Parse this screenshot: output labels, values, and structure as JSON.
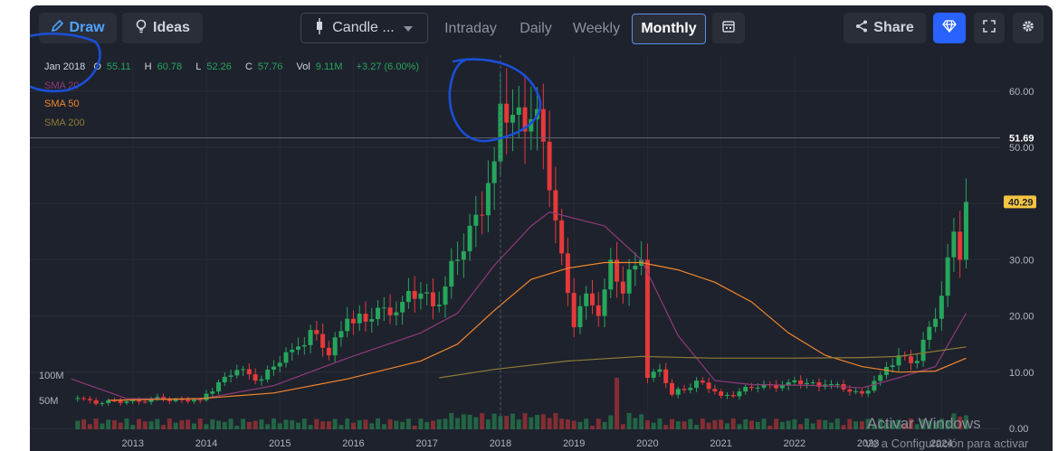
{
  "toolbar": {
    "draw_label": "Draw",
    "ideas_label": "Ideas",
    "chart_type_label": "Candle ...",
    "tabs": [
      "Intraday",
      "Daily",
      "Weekly",
      "Monthly"
    ],
    "active_tab": "Monthly",
    "share_label": "Share"
  },
  "ohlc": {
    "period": "Jan 2018",
    "o_key": "O",
    "o": "55.11",
    "h_key": "H",
    "h": "60.78",
    "l_key": "L",
    "l": "52.26",
    "c_key": "C",
    "c": "57.76",
    "vol_key": "Vol",
    "vol": "9.11M",
    "change": "+3.27 (6.00%)"
  },
  "indicators": {
    "sma20": "SMA 20",
    "sma50": "SMA 50",
    "sma200": "SMA 200"
  },
  "watermark": {
    "line1": "Activar Windows",
    "line2": "Ve a Configuración para activar"
  },
  "colors": {
    "up": "#26a65b",
    "down": "#e5393a",
    "sma20": "#8e3a78",
    "sma50": "#f2862c",
    "sma200": "#8e7a35",
    "accent": "#2962ff",
    "last_price_tag": "#f5c542",
    "annotation": "#1a4fd6"
  },
  "chart_data": {
    "type": "candlestick",
    "title": "",
    "interval": "monthly",
    "x_ticks": [
      "2013",
      "2014",
      "2015",
      "2016",
      "2017",
      "2018",
      "2019",
      "2020",
      "2021",
      "2022",
      "2023",
      "2024"
    ],
    "y_ticks": [
      "0.00",
      "10.00",
      "20.00",
      "30.00",
      "40.00",
      "50.00",
      "60.00"
    ],
    "volume_ticks": [
      "50M",
      "100M"
    ],
    "ylim": [
      0,
      62
    ],
    "reference_line": {
      "value": 51.69,
      "label": "51.69"
    },
    "last_price": {
      "value": 40.29,
      "label": "40.29"
    },
    "ohlc_anchors": [
      [
        "2012-04",
        5.4
      ],
      [
        "2012-08",
        4.5
      ],
      [
        "2012-12",
        4.8
      ],
      [
        "2013-06",
        5.2
      ],
      [
        "2013-12",
        5.0
      ],
      [
        "2014-03",
        8.2
      ],
      [
        "2014-06",
        10.4
      ],
      [
        "2014-09",
        8.5
      ],
      [
        "2014-12",
        11.0
      ],
      [
        "2015-03",
        14.0
      ],
      [
        "2015-06",
        17.5
      ],
      [
        "2015-09",
        13.0
      ],
      [
        "2015-12",
        19.5
      ],
      [
        "2016-03",
        19.0
      ],
      [
        "2016-06",
        21.5
      ],
      [
        "2016-09",
        22.5
      ],
      [
        "2016-12",
        24.0
      ],
      [
        "2017-03",
        22.0
      ],
      [
        "2017-06",
        30.0
      ],
      [
        "2017-09",
        38.0
      ],
      [
        "2017-12",
        47.5
      ],
      [
        "2018-01",
        57.76
      ],
      [
        "2018-06",
        55.0
      ],
      [
        "2018-08",
        51.0
      ],
      [
        "2018-10",
        37.0
      ],
      [
        "2019-01",
        18.0
      ],
      [
        "2019-03",
        24.0
      ],
      [
        "2019-05",
        20.0
      ],
      [
        "2019-07",
        30.0
      ],
      [
        "2019-09",
        24.0
      ],
      [
        "2019-12",
        30.0
      ],
      [
        "2020-01",
        9.0
      ],
      [
        "2020-03",
        10.5
      ],
      [
        "2020-05",
        6.0
      ],
      [
        "2020-09",
        8.5
      ],
      [
        "2021-01",
        5.8
      ],
      [
        "2021-06",
        7.2
      ],
      [
        "2021-12",
        8.2
      ],
      [
        "2022-06",
        7.8
      ],
      [
        "2022-12",
        6.2
      ],
      [
        "2023-03",
        9.5
      ],
      [
        "2023-06",
        13.0
      ],
      [
        "2023-09",
        12.0
      ],
      [
        "2023-12",
        19.5
      ],
      [
        "2024-03",
        35.0
      ],
      [
        "2024-04",
        30.0
      ],
      [
        "2024-05",
        40.29
      ]
    ],
    "series": [
      {
        "name": "SMA 20",
        "points": [
          [
            "2012-03",
            8.8
          ],
          [
            "2012-12",
            5.3
          ],
          [
            "2013-12",
            5.2
          ],
          [
            "2014-12",
            7.6
          ],
          [
            "2015-12",
            12.5
          ],
          [
            "2016-12",
            17.0
          ],
          [
            "2017-06",
            20.5
          ],
          [
            "2017-12",
            29.0
          ],
          [
            "2018-06",
            36.0
          ],
          [
            "2018-09",
            38.5
          ],
          [
            "2019-06",
            36.0
          ],
          [
            "2019-12",
            30.0
          ],
          [
            "2020-06",
            16.5
          ],
          [
            "2020-12",
            8.5
          ],
          [
            "2021-06",
            7.8
          ],
          [
            "2022-06",
            7.6
          ],
          [
            "2022-12",
            7.2
          ],
          [
            "2023-06",
            9.0
          ],
          [
            "2023-12",
            11.0
          ],
          [
            "2024-05",
            20.5
          ]
        ]
      },
      {
        "name": "SMA 50",
        "points": [
          [
            "2012-09",
            5.0
          ],
          [
            "2013-12",
            5.3
          ],
          [
            "2014-12",
            6.3
          ],
          [
            "2015-12",
            8.8
          ],
          [
            "2016-12",
            12.0
          ],
          [
            "2017-06",
            15.0
          ],
          [
            "2017-12",
            21.0
          ],
          [
            "2018-06",
            26.5
          ],
          [
            "2018-12",
            28.5
          ],
          [
            "2019-06",
            29.5
          ],
          [
            "2019-12",
            29.5
          ],
          [
            "2020-06",
            28.2
          ],
          [
            "2020-12",
            26.0
          ],
          [
            "2021-06",
            22.5
          ],
          [
            "2021-12",
            17.0
          ],
          [
            "2022-06",
            13.0
          ],
          [
            "2022-12",
            11.0
          ],
          [
            "2023-06",
            10.0
          ],
          [
            "2023-12",
            10.2
          ],
          [
            "2024-05",
            12.5
          ]
        ]
      },
      {
        "name": "SMA 200",
        "points": [
          [
            "2017-03",
            9.0
          ],
          [
            "2017-12",
            10.5
          ],
          [
            "2018-12",
            12.0
          ],
          [
            "2019-12",
            12.8
          ],
          [
            "2020-12",
            12.5
          ],
          [
            "2021-12",
            12.5
          ],
          [
            "2022-12",
            12.6
          ],
          [
            "2023-06",
            12.8
          ],
          [
            "2024-05",
            14.5
          ]
        ]
      }
    ]
  }
}
